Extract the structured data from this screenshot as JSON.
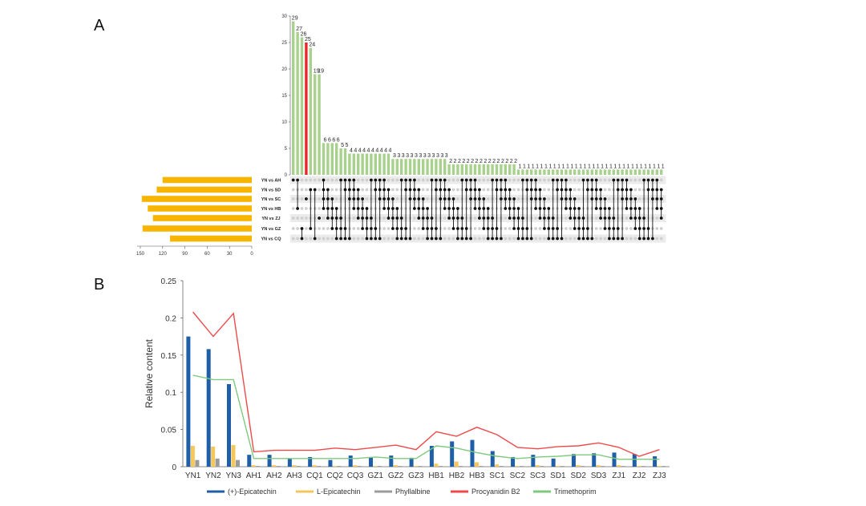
{
  "panels": {
    "a": "A",
    "b": "B"
  },
  "chart_data": [
    {
      "type": "upset",
      "panel": "A",
      "intersection_sizes": [
        29,
        27,
        26,
        25,
        24,
        19,
        19,
        6,
        6,
        6,
        6,
        5,
        5,
        4,
        4,
        4,
        4,
        4,
        4,
        4,
        4,
        4,
        4,
        3,
        3,
        3,
        3,
        3,
        3,
        3,
        3,
        3,
        3,
        3,
        3,
        3,
        2,
        2,
        2,
        2,
        2,
        2,
        2,
        2,
        2,
        2,
        2,
        2,
        2,
        2,
        2,
        2,
        1,
        1,
        1,
        1,
        1,
        1,
        1,
        1,
        1,
        1,
        1,
        1,
        1,
        1,
        1,
        1,
        1,
        1,
        1,
        1,
        1,
        1,
        1,
        1,
        1,
        1,
        1,
        1,
        1,
        1,
        1,
        1,
        1,
        1
      ],
      "highlight_index": 3,
      "colors": {
        "bars": "#a9d18e",
        "highlight": "#e8262b",
        "highlight_label": "#e8262b",
        "set_bars": "#f7b500",
        "dot_on": "#111111",
        "dot_off": "#cfcfcf",
        "matrix_band": "#ebebeb"
      },
      "ylim": [
        0,
        30
      ],
      "yticks": [
        0,
        5,
        10,
        15,
        20,
        25,
        30
      ],
      "sets": [
        {
          "name": "YN vs AH",
          "size": 120
        },
        {
          "name": "YN vs SD",
          "size": 128
        },
        {
          "name": "YN vs SC",
          "size": 148
        },
        {
          "name": "YN vs HB",
          "size": 140
        },
        {
          "name": "YN vs ZJ",
          "size": 133
        },
        {
          "name": "YN vs GZ",
          "size": 147
        },
        {
          "name": "YN vs CQ",
          "size": 110
        }
      ],
      "set_axis": {
        "ticks": [
          150,
          120,
          90,
          60,
          30,
          0
        ],
        "max": 150
      }
    },
    {
      "type": "bar+line",
      "panel": "B",
      "ylabel": "Relative content",
      "ylim": [
        0,
        0.25
      ],
      "yticks": [
        0,
        0.05,
        0.1,
        0.15,
        0.2,
        0.25
      ],
      "categories": [
        "YN1",
        "YN2",
        "YN3",
        "AH1",
        "AH2",
        "AH3",
        "CQ1",
        "CQ2",
        "CQ3",
        "GZ1",
        "GZ2",
        "GZ3",
        "HB1",
        "HB2",
        "HB3",
        "SC1",
        "SC2",
        "SC3",
        "SD1",
        "SD2",
        "SD3",
        "ZJ1",
        "ZJ2",
        "ZJ3"
      ],
      "bar_series": [
        {
          "name": "(+)-Epicatechin",
          "color": "#1f5fa8",
          "values": [
            0.175,
            0.158,
            0.111,
            0.016,
            0.016,
            0.011,
            0.013,
            0.009,
            0.015,
            0.013,
            0.015,
            0.012,
            0.028,
            0.034,
            0.036,
            0.021,
            0.013,
            0.016,
            0.011,
            0.017,
            0.018,
            0.019,
            0.017,
            0.014
          ]
        },
        {
          "name": "L-Epicatechin",
          "color": "#f5c65b",
          "values": [
            0.028,
            0.027,
            0.029,
            0.002,
            0.002,
            0.002,
            0.002,
            0.001,
            0.002,
            0.001,
            0.002,
            0.001,
            0.004,
            0.007,
            0.006,
            0.003,
            0.001,
            0.002,
            0.001,
            0.002,
            0.002,
            0.002,
            0.001,
            0.001
          ]
        },
        {
          "name": "Phyllalbine",
          "color": "#9b9b9b",
          "values": [
            0.009,
            0.011,
            0.009,
            0.001,
            0.001,
            0.001,
            0.001,
            0.001,
            0.001,
            0.001,
            0.001,
            0.001,
            0.001,
            0.001,
            0.001,
            0.001,
            0.001,
            0.001,
            0.001,
            0.001,
            0.001,
            0.001,
            0.001,
            0.001
          ]
        }
      ],
      "line_series": [
        {
          "name": "Procyanidin B2",
          "color": "#ee4a4a",
          "values": [
            0.208,
            0.175,
            0.206,
            0.02,
            0.022,
            0.022,
            0.022,
            0.025,
            0.023,
            0.026,
            0.029,
            0.023,
            0.047,
            0.041,
            0.053,
            0.043,
            0.026,
            0.024,
            0.027,
            0.028,
            0.032,
            0.026,
            0.014,
            0.023
          ]
        },
        {
          "name": "Trimethoprim",
          "color": "#7fc97f",
          "values": [
            0.123,
            0.117,
            0.117,
            0.011,
            0.011,
            0.011,
            0.011,
            0.011,
            0.011,
            0.013,
            0.011,
            0.011,
            0.028,
            0.025,
            0.019,
            0.014,
            0.011,
            0.013,
            0.014,
            0.016,
            0.016,
            0.01,
            0.01,
            0.01
          ]
        }
      ]
    }
  ]
}
